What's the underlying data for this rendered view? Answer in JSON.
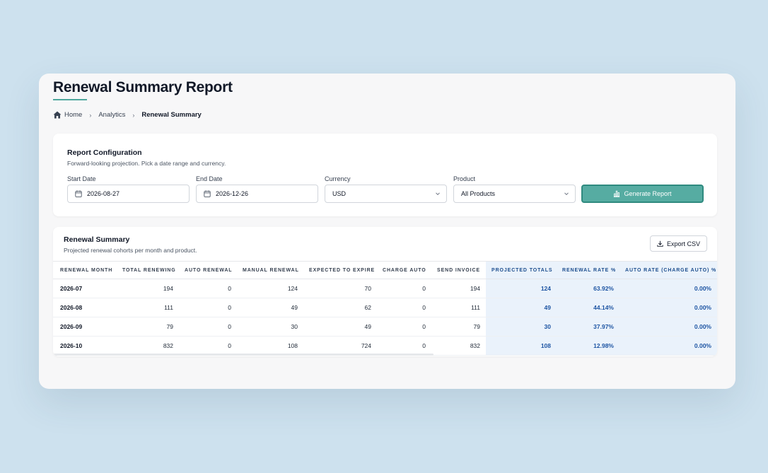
{
  "header": {
    "title": "Renewal Summary Report",
    "breadcrumb": [
      {
        "label": "Home",
        "icon": "home-icon"
      },
      {
        "label": "Analytics"
      },
      {
        "label": "Renewal Summary"
      }
    ]
  },
  "config": {
    "title": "Report Configuration",
    "subtitle": "Forward-looking projection. Pick a date range and currency.",
    "start_date": {
      "label": "Start Date",
      "value": "2026-08-27",
      "icon": "calendar-icon"
    },
    "end_date": {
      "label": "End Date",
      "value": "2026-12-26",
      "icon": "calendar-icon"
    },
    "currency": {
      "label": "Currency",
      "value": "USD"
    },
    "product": {
      "label": "Product",
      "value": "All Products"
    },
    "generate_label": "Generate Report",
    "generate_icon": "bar-chart-icon",
    "accent_color": "#56aca2"
  },
  "summary": {
    "title": "Renewal Summary",
    "subtitle": "Projected renewal cohorts per month and product.",
    "export_label": "Export CSV",
    "export_icon": "download-icon",
    "columns": [
      "Renewal Month",
      "Total Renewing",
      "Auto Renewal",
      "Manual Renewal",
      "Expected to Expire",
      "Charge Auto",
      "Send Invoice",
      "Projected Totals",
      "Renewal Rate %",
      "Auto Rate (Charge Auto) %"
    ],
    "rows": [
      [
        "2026-07",
        "194",
        "0",
        "124",
        "70",
        "0",
        "194",
        "124",
        "63.92%",
        "0.00%"
      ],
      [
        "2026-08",
        "111",
        "0",
        "49",
        "62",
        "0",
        "111",
        "49",
        "44.14%",
        "0.00%"
      ],
      [
        "2026-09",
        "79",
        "0",
        "30",
        "49",
        "0",
        "79",
        "30",
        "37.97%",
        "0.00%"
      ],
      [
        "2026-10",
        "832",
        "0",
        "108",
        "724",
        "0",
        "832",
        "108",
        "12.98%",
        "0.00%"
      ]
    ],
    "highlight_color": "#eaf2fb"
  }
}
